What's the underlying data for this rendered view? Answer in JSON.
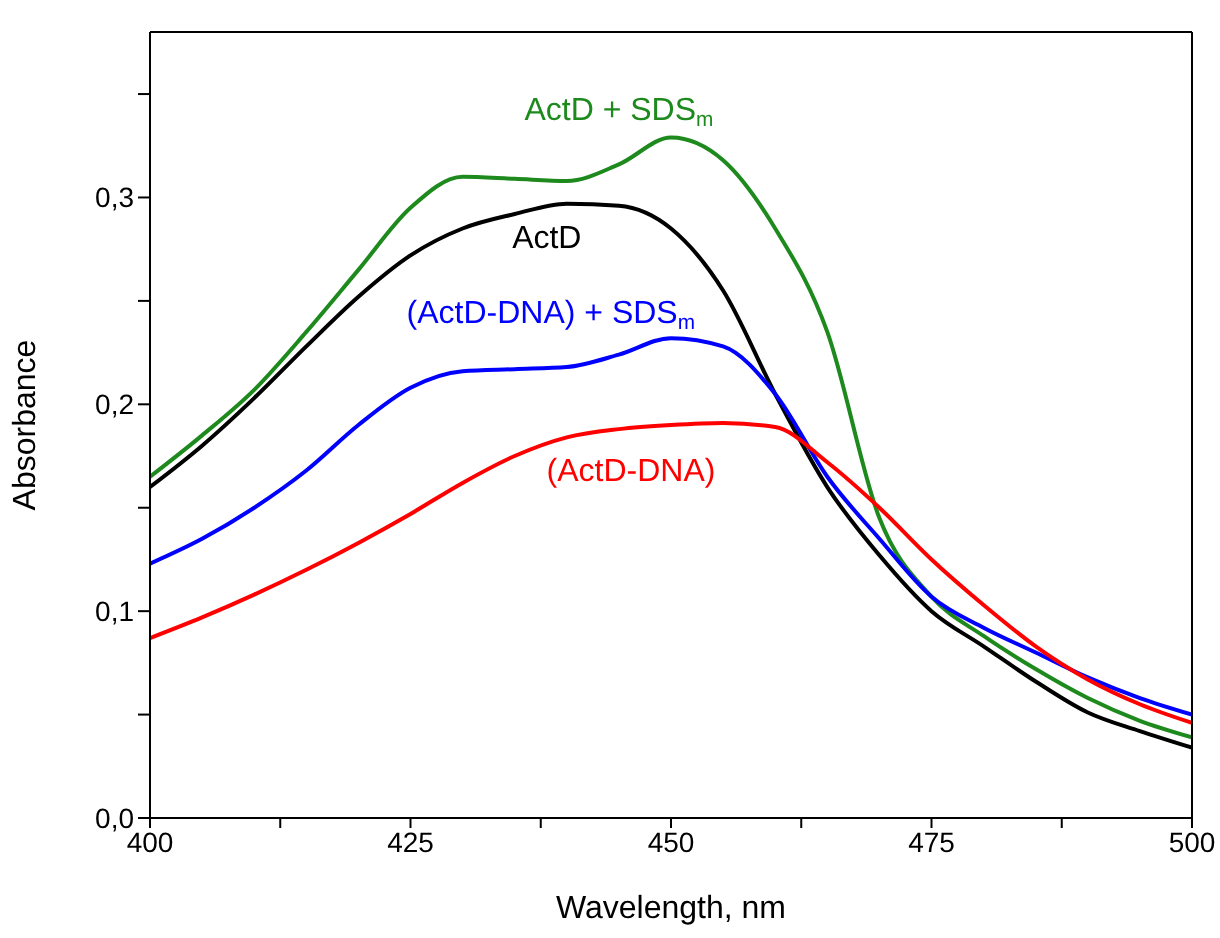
{
  "chart_data": {
    "type": "line",
    "xlabel": "Wavelength, nm",
    "ylabel": "Absorbance",
    "x": [
      400,
      405,
      410,
      415,
      420,
      425,
      430,
      435,
      440,
      445,
      450,
      455,
      460,
      465,
      470,
      475,
      480,
      485,
      490,
      495,
      500
    ],
    "xlim": [
      400,
      500
    ],
    "xticks": [
      400,
      {
        "value": 412.5,
        "label": null
      },
      425,
      {
        "value": 437.5,
        "label": null
      },
      450,
      {
        "value": 462.5,
        "label": null
      },
      475,
      {
        "value": 487.5,
        "label": null
      },
      500
    ],
    "ylim": [
      0,
      0.38
    ],
    "yticks": [
      {
        "value": 0,
        "label": "0,0"
      },
      {
        "value": 0.05,
        "label": null
      },
      {
        "value": 0.1,
        "label": "0,1"
      },
      {
        "value": 0.15,
        "label": null
      },
      {
        "value": 0.2,
        "label": "0,2"
      },
      {
        "value": 0.25,
        "label": null
      },
      {
        "value": 0.3,
        "label": "0,3"
      },
      {
        "value": 0.35,
        "label": null
      }
    ],
    "marker": "none",
    "line_style": "solid",
    "series": [
      {
        "name": "ActD + SDS$_{m}$",
        "color": "#1e8a1e",
        "values": [
          0.165,
          0.185,
          0.207,
          0.235,
          0.265,
          0.295,
          0.31,
          0.309,
          0.308,
          0.316,
          0.329,
          0.318,
          0.285,
          0.235,
          0.145,
          0.107,
          0.088,
          0.072,
          0.058,
          0.047,
          0.039
        ]
      },
      {
        "name": "ActD",
        "color": "#000000",
        "values": [
          0.16,
          0.18,
          0.203,
          0.228,
          0.252,
          0.272,
          0.285,
          0.292,
          0.297,
          0.296,
          0.285,
          0.255,
          0.205,
          0.16,
          0.127,
          0.1,
          0.083,
          0.066,
          0.051,
          0.042,
          0.034
        ]
      },
      {
        "name": "(ActD-DNA) + SDS$_{m}$",
        "color": "#0000ff",
        "values": [
          0.123,
          0.135,
          0.15,
          0.168,
          0.19,
          0.208,
          0.216,
          0.217,
          0.218,
          0.224,
          0.232,
          0.228,
          0.205,
          0.165,
          0.135,
          0.107,
          0.092,
          0.08,
          0.068,
          0.058,
          0.05
        ]
      },
      {
        "name": "(ActD-DNA)",
        "color": "#ff0000",
        "values": [
          0.087,
          0.097,
          0.108,
          0.12,
          0.133,
          0.147,
          0.162,
          0.175,
          0.184,
          0.188,
          0.19,
          0.191,
          0.189,
          0.172,
          0.15,
          0.125,
          0.103,
          0.083,
          0.067,
          0.055,
          0.046
        ]
      }
    ]
  }
}
